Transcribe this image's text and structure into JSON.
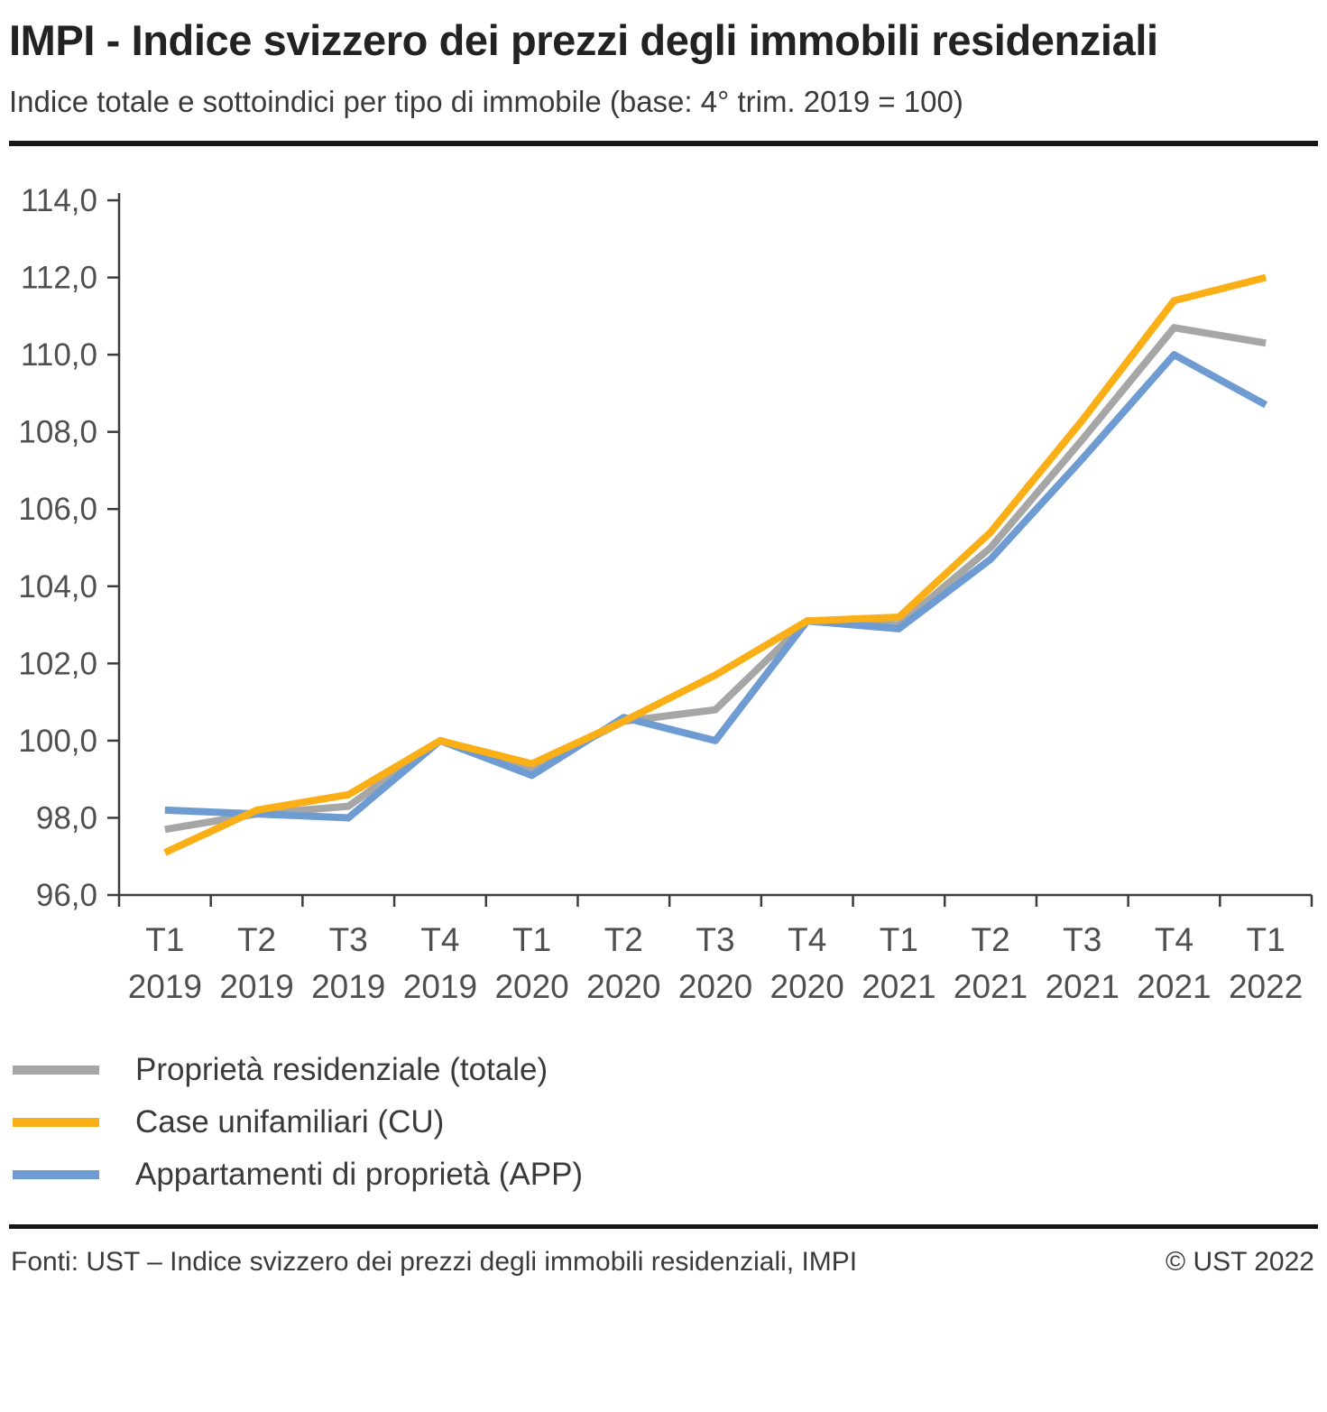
{
  "header": {
    "title": "IMPI - Indice svizzero dei prezzi degli immobili residenziali",
    "subtitle": "Indice totale e sottoindici per tipo di immobile (base: 4° trim. 2019 = 100)"
  },
  "chart_data": {
    "type": "line",
    "title": "IMPI - Indice svizzero dei prezzi degli immobili residenziali",
    "subtitle": "Indice totale e sottoindici per tipo di immobile (base: 4° trim. 2019 = 100)",
    "xlabel": "",
    "ylabel": "",
    "ylim": [
      96,
      114
    ],
    "grid": false,
    "legend_position": "bottom-left",
    "categories": [
      "T1 2019",
      "T2 2019",
      "T3 2019",
      "T4 2019",
      "T1 2020",
      "T2 2020",
      "T3 2020",
      "T4 2020",
      "T1 2021",
      "T2 2021",
      "T3 2021",
      "T4 2021",
      "T1 2022"
    ],
    "ytick_values": [
      96,
      98,
      100,
      102,
      104,
      106,
      108,
      110,
      112,
      114
    ],
    "ytick_labels": [
      "96,0",
      "98,0",
      "100,0",
      "102,0",
      "104,0",
      "106,0",
      "108,0",
      "110,0",
      "112,0",
      "114,0"
    ],
    "series": [
      {
        "name": "Proprietà residenziale (totale)",
        "color": "#A6A6A6",
        "values": [
          97.7,
          98.1,
          98.3,
          100.0,
          99.3,
          100.5,
          100.8,
          103.1,
          103.0,
          105.0,
          107.8,
          110.7,
          110.3
        ]
      },
      {
        "name": "Case unifamiliari (CU)",
        "color": "#FBAF17",
        "values": [
          97.1,
          98.2,
          98.6,
          100.0,
          99.4,
          100.5,
          101.7,
          103.1,
          103.2,
          105.4,
          108.3,
          111.4,
          112.0
        ]
      },
      {
        "name": "Appartamenti di proprietà (APP)",
        "color": "#6E9CD2",
        "values": [
          98.2,
          98.1,
          98.0,
          100.0,
          99.1,
          100.6,
          100.0,
          103.1,
          102.9,
          104.7,
          107.3,
          110.0,
          108.7
        ]
      }
    ],
    "draw_order": [
      0,
      2,
      1
    ],
    "axis_color": "#3c3c3c",
    "tick_text_color": "#4f4f4f"
  },
  "legend": [
    {
      "label": "Proprietà residenziale (totale)"
    },
    {
      "label": "Case unifamiliari (CU)"
    },
    {
      "label": "Appartamenti di proprietà (APP)"
    }
  ],
  "footer": {
    "source": "Fonti: UST – Indice svizzero dei prezzi degli immobili residenziali, IMPI",
    "copyright": "© UST 2022"
  }
}
